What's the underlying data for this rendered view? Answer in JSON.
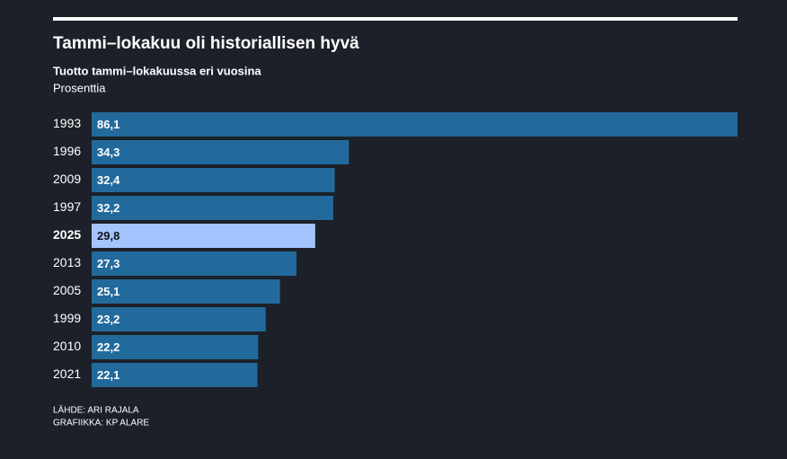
{
  "chart_data": {
    "type": "hbar",
    "title": "Tammi–lokakuu oli historiallisen hyvä",
    "subtitle": "Tuotto tammi–lokakuussa eri vuosina",
    "unit_label": "Prosenttia",
    "categories": [
      "1993",
      "1996",
      "2009",
      "1997",
      "2025",
      "2013",
      "2005",
      "1999",
      "2010",
      "2021"
    ],
    "values": [
      86.1,
      34.3,
      32.4,
      32.2,
      29.8,
      27.3,
      25.1,
      23.2,
      22.2,
      22.1
    ],
    "value_labels": [
      "86,1",
      "34,3",
      "32,4",
      "32,2",
      "29,8",
      "27,3",
      "25,1",
      "23,2",
      "22,2",
      "22,1"
    ],
    "color": "#236a9c",
    "highlight": "2025",
    "highlight_color": "#a4c4ff",
    "xlim": [
      0,
      86.1
    ],
    "source": "LÄHDE: ARI RAJALA",
    "credit": "GRAFIIKKA: KP ALARE"
  }
}
